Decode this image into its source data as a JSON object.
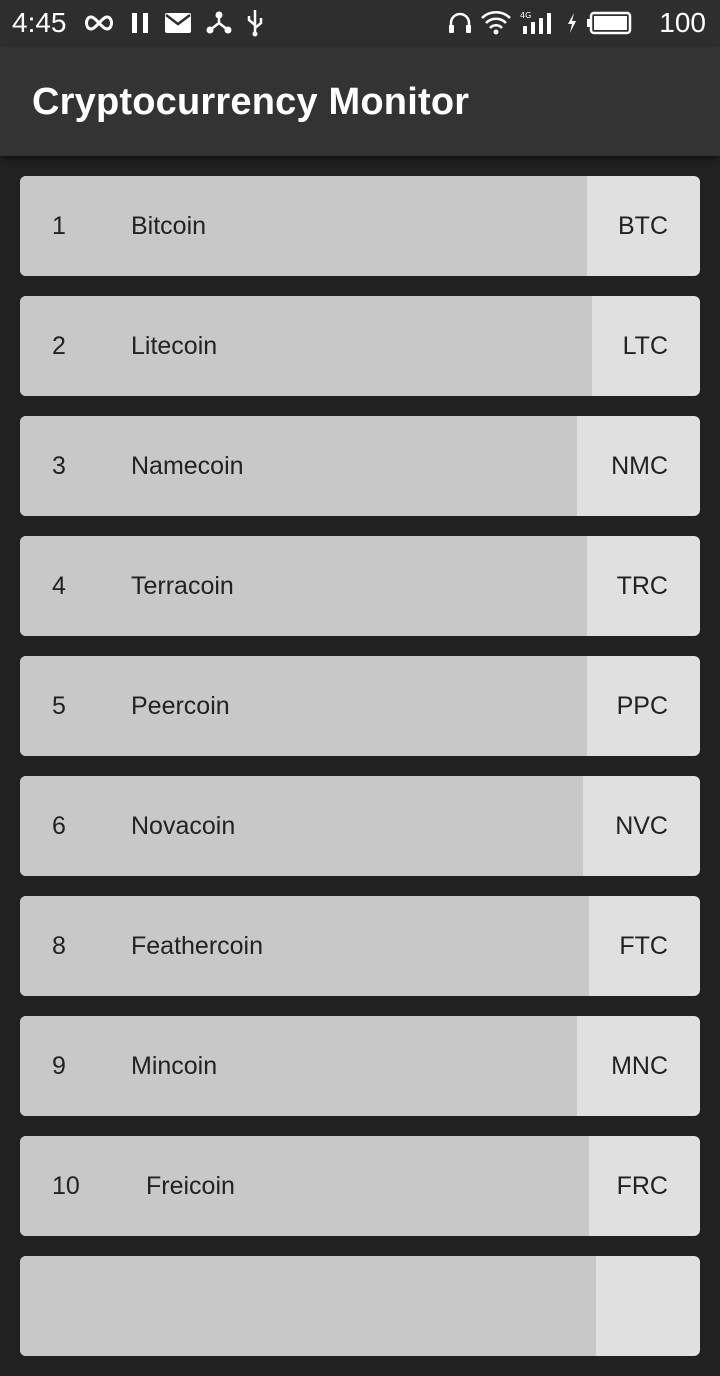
{
  "status_bar": {
    "time": "4:45",
    "battery": "100",
    "left_icons": [
      "infinity-icon",
      "pause-icon",
      "mail-icon",
      "share-icon",
      "usb-icon"
    ],
    "right_icons": [
      "headphones-icon",
      "wifi-icon",
      "signal-4g-icon",
      "charging-icon",
      "battery-icon"
    ]
  },
  "app_bar": {
    "title": "Cryptocurrency Monitor"
  },
  "coins": [
    {
      "rank": "1",
      "name": "Bitcoin",
      "symbol": "BTC"
    },
    {
      "rank": "2",
      "name": "Litecoin",
      "symbol": "LTC"
    },
    {
      "rank": "3",
      "name": "Namecoin",
      "symbol": "NMC"
    },
    {
      "rank": "4",
      "name": "Terracoin",
      "symbol": "TRC"
    },
    {
      "rank": "5",
      "name": "Peercoin",
      "symbol": "PPC"
    },
    {
      "rank": "6",
      "name": "Novacoin",
      "symbol": "NVC"
    },
    {
      "rank": "8",
      "name": "Feathercoin",
      "symbol": "FTC"
    },
    {
      "rank": "9",
      "name": "Mincoin",
      "symbol": "MNC"
    },
    {
      "rank": "10",
      "name": "Freicoin",
      "symbol": "FRC"
    },
    {
      "rank": "",
      "name": "",
      "symbol": ""
    }
  ],
  "colors": {
    "background": "#212121",
    "app_bar": "#333333",
    "row_main": "#c8c8c8",
    "row_symbol": "#e0e0e0",
    "text": "#222222"
  }
}
